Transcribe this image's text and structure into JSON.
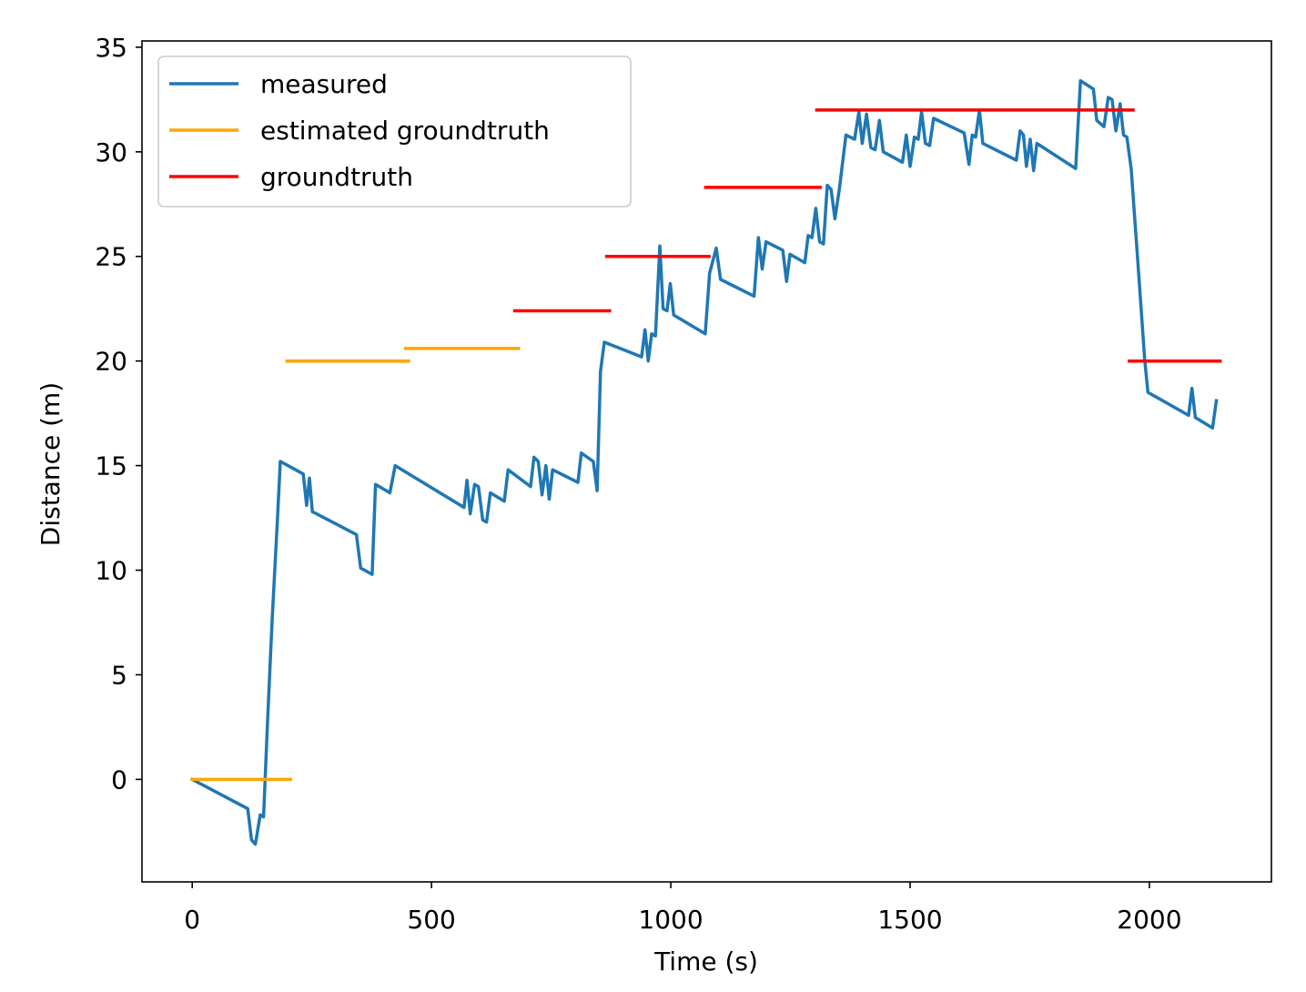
{
  "chart_data": {
    "type": "line",
    "title": "",
    "xlabel": "Time (s)",
    "ylabel": "Distance (m)",
    "xlim": [
      -105,
      2255
    ],
    "ylim": [
      -4.9,
      35.3
    ],
    "xticks": [
      0,
      500,
      1000,
      1500,
      2000
    ],
    "yticks": [
      0,
      5,
      10,
      15,
      20,
      25,
      30,
      35
    ],
    "grid": false,
    "legend_position": "top-left",
    "legend": [
      {
        "name": "measured",
        "color": "#1f77b4"
      },
      {
        "name": "estimated groundtruth",
        "color": "#ffa500"
      },
      {
        "name": "groundtruth",
        "color": "#ff0000"
      }
    ],
    "series": [
      {
        "name": "measured",
        "color": "#1f77b4",
        "kind": "line",
        "points": [
          [
            0,
            0
          ],
          [
            116,
            -1.4
          ],
          [
            124,
            -2.9
          ],
          [
            132,
            -3.1
          ],
          [
            142,
            -1.7
          ],
          [
            149,
            -1.8
          ],
          [
            157,
            2.6
          ],
          [
            167,
            7.6
          ],
          [
            178,
            12.4
          ],
          [
            184,
            15.2
          ],
          [
            232,
            14.6
          ],
          [
            239,
            13.1
          ],
          [
            245,
            14.4
          ],
          [
            251,
            12.8
          ],
          [
            343,
            11.7
          ],
          [
            352,
            10.1
          ],
          [
            376,
            9.8
          ],
          [
            383,
            14.1
          ],
          [
            413,
            13.7
          ],
          [
            424,
            15.0
          ],
          [
            568,
            13.0
          ],
          [
            574,
            14.3
          ],
          [
            581,
            12.7
          ],
          [
            590,
            14.1
          ],
          [
            598,
            14.0
          ],
          [
            607,
            12.4
          ],
          [
            615,
            12.3
          ],
          [
            623,
            13.7
          ],
          [
            652,
            13.3
          ],
          [
            660,
            14.8
          ],
          [
            707,
            14.0
          ],
          [
            714,
            15.4
          ],
          [
            723,
            15.2
          ],
          [
            731,
            13.6
          ],
          [
            739,
            15.0
          ],
          [
            746,
            13.4
          ],
          [
            753,
            14.8
          ],
          [
            806,
            14.2
          ],
          [
            813,
            15.6
          ],
          [
            838,
            15.2
          ],
          [
            846,
            13.8
          ],
          [
            853,
            19.5
          ],
          [
            861,
            20.9
          ],
          [
            939,
            20.2
          ],
          [
            946,
            21.5
          ],
          [
            953,
            20.0
          ],
          [
            960,
            21.3
          ],
          [
            968,
            21.2
          ],
          [
            977,
            25.5
          ],
          [
            984,
            22.5
          ],
          [
            992,
            22.4
          ],
          [
            999,
            23.7
          ],
          [
            1006,
            22.2
          ],
          [
            1072,
            21.3
          ],
          [
            1081,
            24.2
          ],
          [
            1095,
            25.4
          ],
          [
            1104,
            23.9
          ],
          [
            1174,
            23.1
          ],
          [
            1183,
            25.9
          ],
          [
            1191,
            24.4
          ],
          [
            1199,
            25.7
          ],
          [
            1234,
            25.3
          ],
          [
            1242,
            23.8
          ],
          [
            1249,
            25.1
          ],
          [
            1280,
            24.7
          ],
          [
            1287,
            26.0
          ],
          [
            1295,
            25.9
          ],
          [
            1303,
            27.3
          ],
          [
            1311,
            25.7
          ],
          [
            1319,
            25.6
          ],
          [
            1327,
            28.4
          ],
          [
            1335,
            28.2
          ],
          [
            1343,
            26.8
          ],
          [
            1352,
            28.2
          ],
          [
            1366,
            30.8
          ],
          [
            1384,
            30.6
          ],
          [
            1393,
            31.9
          ],
          [
            1400,
            30.4
          ],
          [
            1409,
            31.8
          ],
          [
            1418,
            30.2
          ],
          [
            1427,
            30.1
          ],
          [
            1436,
            31.5
          ],
          [
            1444,
            30.0
          ],
          [
            1484,
            29.5
          ],
          [
            1492,
            30.8
          ],
          [
            1500,
            29.3
          ],
          [
            1509,
            30.7
          ],
          [
            1517,
            30.6
          ],
          [
            1524,
            31.9
          ],
          [
            1532,
            30.4
          ],
          [
            1541,
            30.3
          ],
          [
            1549,
            31.6
          ],
          [
            1613,
            30.9
          ],
          [
            1623,
            29.4
          ],
          [
            1630,
            30.8
          ],
          [
            1637,
            30.7
          ],
          [
            1645,
            32.0
          ],
          [
            1652,
            30.4
          ],
          [
            1722,
            29.6
          ],
          [
            1730,
            31.0
          ],
          [
            1737,
            30.8
          ],
          [
            1743,
            29.3
          ],
          [
            1751,
            30.6
          ],
          [
            1758,
            29.1
          ],
          [
            1765,
            30.4
          ],
          [
            1846,
            29.2
          ],
          [
            1856,
            33.4
          ],
          [
            1883,
            33.0
          ],
          [
            1890,
            31.5
          ],
          [
            1905,
            31.2
          ],
          [
            1914,
            32.6
          ],
          [
            1922,
            32.5
          ],
          [
            1930,
            31.0
          ],
          [
            1939,
            32.3
          ],
          [
            1946,
            30.8
          ],
          [
            1953,
            30.7
          ],
          [
            1962,
            29.2
          ],
          [
            1976,
            24.7
          ],
          [
            1990,
            20.1
          ],
          [
            1997,
            18.5
          ],
          [
            2082,
            17.4
          ],
          [
            2089,
            18.7
          ],
          [
            2096,
            17.3
          ],
          [
            2132,
            16.8
          ],
          [
            2140,
            18.1
          ]
        ]
      },
      {
        "name": "estimated groundtruth",
        "color": "#ffa500",
        "kind": "segments",
        "segments": [
          [
            0,
            205,
            0
          ],
          [
            198,
            452,
            20.0
          ],
          [
            446,
            682,
            20.6
          ]
        ]
      },
      {
        "name": "groundtruth",
        "color": "#ff0000",
        "kind": "segments",
        "segments": [
          [
            674,
            872,
            22.4
          ],
          [
            866,
            1080,
            25.0
          ],
          [
            1073,
            1312,
            28.3
          ],
          [
            1305,
            1966,
            32.0
          ],
          [
            1958,
            2148,
            20.0
          ]
        ]
      }
    ]
  }
}
